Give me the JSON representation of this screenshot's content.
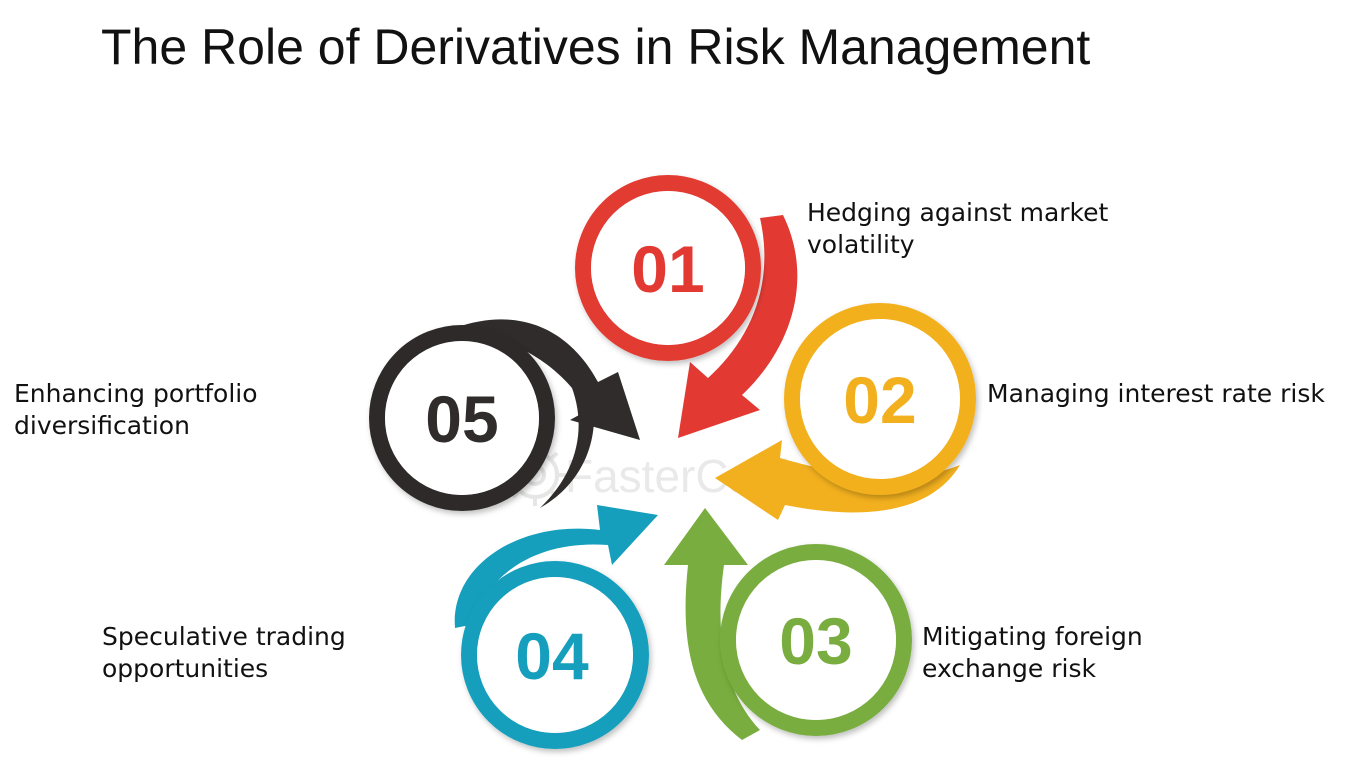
{
  "title": "The Role of Derivatives in Risk Management",
  "colors": {
    "step_01": "#e23a33",
    "step_02": "#f2b01e",
    "step_03": "#79ad3f",
    "step_04": "#159fbd",
    "step_05": "#2f2c2b"
  },
  "steps": [
    {
      "number": "01",
      "label_lines": [
        "Hedging against market",
        "volatility"
      ]
    },
    {
      "number": "02",
      "label_lines": [
        "Managing interest rate risk"
      ]
    },
    {
      "number": "03",
      "label_lines": [
        "Mitigating foreign",
        "exchange risk"
      ]
    },
    {
      "number": "04",
      "label_lines": [
        "Speculative trading",
        "opportunities"
      ]
    },
    {
      "number": "05",
      "label_lines": [
        "Enhancing portfolio",
        "diversification"
      ]
    }
  ],
  "watermark": "FasterCapital"
}
